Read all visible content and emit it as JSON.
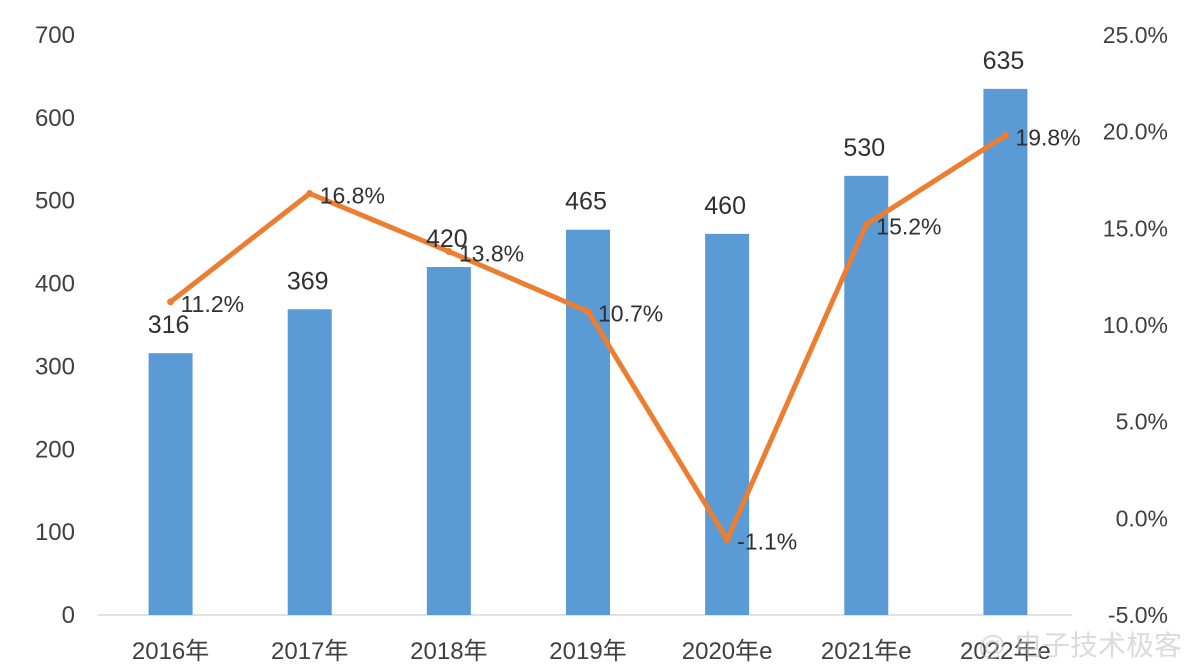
{
  "chart_data": {
    "type": "bar",
    "categories": [
      "2016年",
      "2017年",
      "2018年",
      "2019年",
      "2020年e",
      "2021年e",
      "2022年e"
    ],
    "series": [
      {
        "kind": "bar",
        "axis": "left",
        "values": [
          316,
          369,
          420,
          465,
          460,
          530,
          635
        ],
        "labels": [
          "316",
          "369",
          "420",
          "465",
          "460",
          "530",
          "635"
        ],
        "color": "#5B9BD5"
      },
      {
        "kind": "line",
        "axis": "right",
        "values": [
          11.2,
          16.8,
          13.8,
          10.7,
          -1.1,
          15.2,
          19.8
        ],
        "labels": [
          "11.2%",
          "16.8%",
          "13.8%",
          "10.7%",
          "-1.1%",
          "15.2%",
          "19.8%"
        ],
        "color": "#ED7D31"
      }
    ],
    "y_left": {
      "min": 0,
      "max": 700,
      "ticks": [
        "0",
        "100",
        "200",
        "300",
        "400",
        "500",
        "600",
        "700"
      ]
    },
    "y_right": {
      "min": -5,
      "max": 25,
      "ticks": [
        "-5.0%",
        "0.0%",
        "5.0%",
        "10.0%",
        "15.0%",
        "20.0%",
        "25.0%"
      ]
    },
    "grid": false,
    "watermark": "@ 电子技术极客"
  }
}
